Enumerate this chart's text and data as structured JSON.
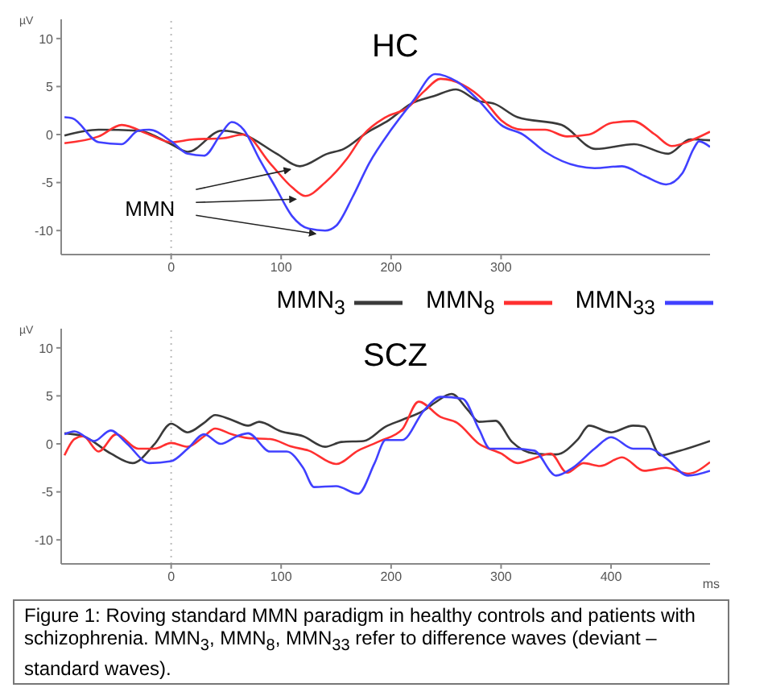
{
  "chart_data": [
    {
      "type": "line",
      "title": "HC",
      "ylabel": "µV",
      "xlim": [
        -100,
        490
      ],
      "xticks": [
        0,
        100,
        200,
        300
      ],
      "ylim": [
        -12.5,
        12
      ],
      "yticks": [
        10,
        5,
        0,
        -5,
        -10
      ],
      "legend": "bottom right",
      "marker": "none",
      "line_style": "solid",
      "ref_lines": [
        {
          "axis": "x",
          "value": 0,
          "color": "#bbbbbb",
          "line_style": "dotted"
        }
      ],
      "annotations": [
        {
          "text": "MMN",
          "x": 122,
          "y": -6.4
        }
      ],
      "series": [
        {
          "name": "MMN$_{3}$",
          "color": "#3a3a3a",
          "x": [
            -97,
            -66,
            -30,
            0,
            15,
            46,
            66,
            96,
            117,
            142,
            157,
            178,
            198,
            218,
            239,
            259,
            279,
            294,
            315,
            355,
            386,
            421,
            452,
            472,
            490
          ],
          "values": [
            -0.1,
            0.5,
            0.4,
            -1,
            -1.8,
            0.4,
            0,
            -2,
            -3.3,
            -2,
            -1.5,
            0.2,
            1.5,
            3.2,
            4,
            4.7,
            3.5,
            3.2,
            1.8,
            1.0,
            -1.5,
            -1,
            -2,
            -0.5,
            -0.6
          ]
        },
        {
          "name": "MMN$_{8}$",
          "color": "#ff3030",
          "x": [
            -97,
            -66,
            -45,
            -20,
            0,
            20,
            46,
            66,
            90,
            110,
            122,
            140,
            160,
            175,
            195,
            215,
            230,
            245,
            265,
            285,
            300,
            320,
            340,
            360,
            380,
            400,
            420,
            440,
            455,
            475,
            490
          ],
          "values": [
            -0.9,
            -0.2,
            1,
            0,
            -0.8,
            -0.5,
            -0.4,
            0,
            -3,
            -5.5,
            -6.4,
            -5,
            -2.5,
            0,
            1.8,
            2.8,
            4.5,
            5.8,
            5.2,
            3.5,
            1.5,
            0.5,
            0.5,
            -0.2,
            0,
            1.2,
            1.4,
            0,
            -1.2,
            -0.5,
            0.3
          ]
        },
        {
          "name": "MMN$_{33}$",
          "color": "#4040ff",
          "x": [
            -97,
            -90,
            -66,
            -45,
            -30,
            -20,
            0,
            15,
            30,
            45,
            55,
            66,
            80,
            95,
            110,
            125,
            140,
            150,
            165,
            180,
            200,
            220,
            240,
            260,
            280,
            300,
            320,
            340,
            370,
            385,
            410,
            430,
            450,
            465,
            475,
            480,
            490
          ],
          "values": [
            1.8,
            1.7,
            -0.8,
            -1,
            0.4,
            0.5,
            -0.7,
            -2,
            -2.2,
            0,
            1.3,
            0.5,
            -2.5,
            -5.5,
            -8.5,
            -9.8,
            -10,
            -9.5,
            -6.5,
            -3,
            0.5,
            3.5,
            6.3,
            5.5,
            3.5,
            1.0,
            0,
            -1.8,
            -3.3,
            -3.5,
            -3.3,
            -4.3,
            -5.2,
            -4,
            -1.5,
            -0.7,
            -1.3
          ]
        }
      ]
    },
    {
      "type": "line",
      "title": "SCZ",
      "ylabel": "µV",
      "xlabel": "ms",
      "xlim": [
        -100,
        490
      ],
      "xticks": [
        0,
        100,
        200,
        300,
        400
      ],
      "ylim": [
        -12.5,
        12
      ],
      "yticks": [
        10,
        5,
        0,
        -5,
        -10
      ],
      "legend": false,
      "marker": "none",
      "line_style": "solid",
      "ref_lines": [
        {
          "axis": "x",
          "value": 0,
          "color": "#bbbbbb",
          "line_style": "dotted"
        }
      ],
      "annotations": [
        "Figure 1: Roving standard MMN paradigm in healthy controls and patients with schizophrenia. MMN$_{3}$, MMN$_{8}$, MMN$_{33}$ refer to difference waves (deviant – standard waves)."
      ],
      "series": [
        {
          "color": "#3a3a3a",
          "x": [
            -97,
            -80,
            -55,
            -35,
            -15,
            0,
            15,
            30,
            40,
            55,
            70,
            80,
            100,
            120,
            140,
            155,
            175,
            195,
            210,
            230,
            240,
            255,
            270,
            280,
            295,
            310,
            330,
            350,
            370,
            380,
            400,
            420,
            430,
            445,
            460,
            490
          ],
          "values": [
            1.1,
            0.8,
            -1,
            -2,
            0,
            2.1,
            1.2,
            2.2,
            3,
            2.5,
            1.9,
            2.3,
            1.3,
            0.8,
            -0.3,
            0.2,
            0.3,
            1.8,
            2.5,
            3.5,
            4.3,
            5.2,
            3.5,
            2.3,
            2.4,
            0.2,
            -1.0,
            -1.1,
            0.5,
            1.9,
            1.2,
            1.9,
            1.8,
            -1.2,
            -0.8,
            0.3
          ]
        },
        {
          "color": "#ff3030",
          "x": [
            -97,
            -88,
            -80,
            -66,
            -50,
            -30,
            -15,
            0,
            15,
            30,
            40,
            55,
            70,
            90,
            110,
            125,
            150,
            170,
            190,
            210,
            225,
            245,
            260,
            280,
            300,
            315,
            330,
            345,
            360,
            375,
            390,
            410,
            430,
            450,
            470,
            490
          ],
          "values": [
            -1.2,
            0.5,
            0.8,
            -0.8,
            1,
            -0.5,
            -0.5,
            0.1,
            -0.3,
            0.8,
            1.6,
            1,
            0.6,
            0.5,
            -0.3,
            -0.7,
            -2.1,
            -0.7,
            0.3,
            1.5,
            4.4,
            2.8,
            2.2,
            0,
            -1,
            -2,
            -1.5,
            -1,
            -3,
            -2,
            -2.3,
            -1.4,
            -2.8,
            -2.5,
            -3.1,
            -1.9
          ]
        },
        {
          "color": "#4040ff",
          "x": [
            -97,
            -88,
            -70,
            -55,
            -40,
            -20,
            0,
            15,
            30,
            45,
            60,
            70,
            90,
            105,
            120,
            130,
            150,
            170,
            185,
            195,
            210,
            230,
            245,
            265,
            280,
            290,
            310,
            330,
            350,
            365,
            385,
            400,
            420,
            435,
            450,
            470,
            490
          ],
          "values": [
            1,
            1.3,
            0.3,
            1.4,
            0,
            -2,
            -1.8,
            -0.5,
            1,
            0,
            0.8,
            1.1,
            -0.8,
            -0.8,
            -2.5,
            -4.5,
            -4.4,
            -5.2,
            -2,
            0.4,
            0.4,
            3.5,
            4.9,
            4.7,
            1.5,
            -0.5,
            -0.5,
            -0.7,
            -3.3,
            -2.5,
            -0.5,
            0.7,
            -0.5,
            -0.5,
            -1.5,
            -3.3,
            -2.8
          ]
        }
      ]
    }
  ]
}
